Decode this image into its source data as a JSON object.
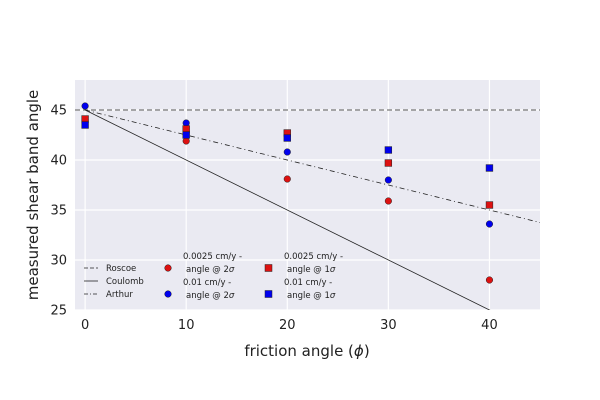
{
  "chart_data": {
    "type": "scatter",
    "xlabel": "friction angle (",
    "xlabel_symbol": "ϕ",
    "xlabel_end": ")",
    "ylabel": "measured shear band angle",
    "xlim": [
      -1,
      45
    ],
    "ylim": [
      25,
      48
    ],
    "x_ticks": [
      0,
      10,
      20,
      30,
      40
    ],
    "y_ticks": [
      25,
      30,
      35,
      40,
      45
    ],
    "grid": true,
    "lines": [
      {
        "name": "Roscoe",
        "style": "dashed",
        "x": [
          -1,
          45
        ],
        "y": [
          45,
          45
        ]
      },
      {
        "name": "Coulomb",
        "style": "solid",
        "x": [
          0,
          45
        ],
        "y": [
          45,
          22.5
        ]
      },
      {
        "name": "Arthur",
        "style": "dashdot",
        "x": [
          0,
          45
        ],
        "y": [
          45,
          33.75
        ]
      }
    ],
    "series": [
      {
        "name_line1": "0.0025 cm/y -",
        "name_line2": "angle @ 2",
        "name_symbol": "σ",
        "marker": "circle",
        "color": "#dd1111",
        "points": [
          [
            0,
            44.0
          ],
          [
            10,
            41.9
          ],
          [
            20,
            38.1
          ],
          [
            30,
            35.9
          ],
          [
            40,
            28.0
          ]
        ]
      },
      {
        "name_line1": "0.01 cm/y -",
        "name_line2": "angle @ 2",
        "name_symbol": "σ",
        "marker": "circle",
        "color": "#0000ee",
        "points": [
          [
            0,
            45.4
          ],
          [
            10,
            43.7
          ],
          [
            20,
            40.8
          ],
          [
            30,
            38.0
          ],
          [
            40,
            33.6
          ]
        ]
      },
      {
        "name_line1": "0.0025 cm/y -",
        "name_line2": "angle @ 1",
        "name_symbol": "σ",
        "marker": "square",
        "color": "#dd1111",
        "points": [
          [
            0,
            44.1
          ],
          [
            10,
            43.1
          ],
          [
            20,
            42.7
          ],
          [
            30,
            39.7
          ],
          [
            40,
            35.5
          ]
        ]
      },
      {
        "name_line1": "0.01 cm/y -",
        "name_line2": "angle @ 1",
        "name_symbol": "σ",
        "marker": "square",
        "color": "#0000ee",
        "points": [
          [
            0,
            43.5
          ],
          [
            10,
            42.5
          ],
          [
            20,
            42.2
          ],
          [
            30,
            41.0
          ],
          [
            40,
            39.2
          ]
        ]
      }
    ],
    "colors": {
      "background": "#eaeaf2",
      "grid": "#ffffff",
      "line": "#222222"
    }
  }
}
